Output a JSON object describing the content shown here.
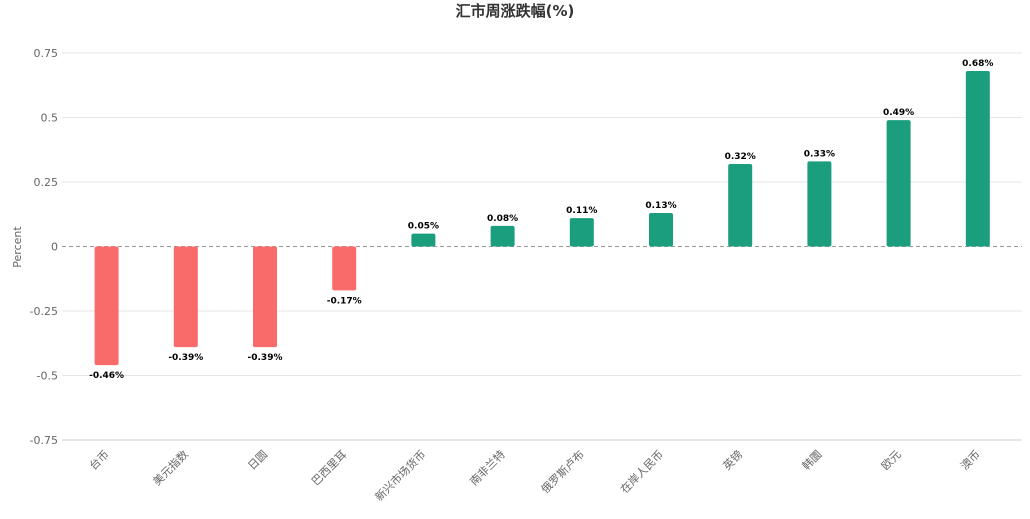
{
  "chart_data": {
    "type": "bar",
    "title": "汇市周涨跌幅(%)",
    "xlabel": "",
    "ylabel": "Percent",
    "ylim": [
      -0.75,
      0.75
    ],
    "yticks": [
      0.75,
      0.5,
      0.25,
      0,
      -0.25,
      -0.5,
      -0.75
    ],
    "ytick_labels": [
      "0.75",
      "0.5",
      "0.25",
      "0",
      "-0.25",
      "-0.5",
      "-0.75"
    ],
    "categories": [
      "台币",
      "美元指数",
      "日圆",
      "巴西里耳",
      "新兴市场货币",
      "南非兰特",
      "俄罗斯卢布",
      "在岸人民币",
      "英镑",
      "韩圜",
      "欧元",
      "澳币"
    ],
    "values": [
      -0.46,
      -0.39,
      -0.39,
      -0.17,
      0.05,
      0.08,
      0.11,
      0.13,
      0.32,
      0.33,
      0.49,
      0.68
    ],
    "data_labels": [
      "-0.46%",
      "-0.39%",
      "-0.39%",
      "-0.17%",
      "0.05%",
      "0.08%",
      "0.11%",
      "0.13%",
      "0.32%",
      "0.33%",
      "0.49%",
      "0.68%"
    ],
    "colors": {
      "positive": "#1a9e7e",
      "negative": "#f96b6b"
    },
    "grid": true,
    "legend": "none"
  }
}
